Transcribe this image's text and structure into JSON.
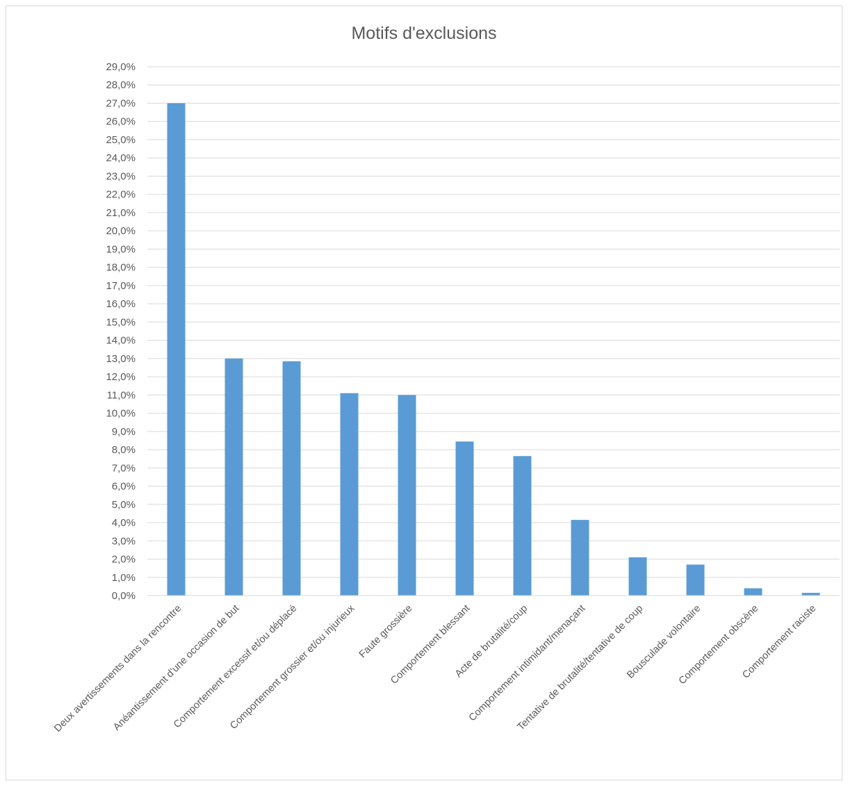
{
  "chart_data": {
    "type": "bar",
    "title": "Motifs d'exclusions",
    "xlabel": "",
    "ylabel": "",
    "ylim": [
      0,
      29
    ],
    "ytick_step": 1,
    "ytick_format": "percent-comma-1dp",
    "ytick_labels": [
      "0,0%",
      "1,0%",
      "2,0%",
      "3,0%",
      "4,0%",
      "5,0%",
      "6,0%",
      "7,0%",
      "8,0%",
      "9,0%",
      "10,0%",
      "11,0%",
      "12,0%",
      "13,0%",
      "14,0%",
      "15,0%",
      "16,0%",
      "17,0%",
      "18,0%",
      "19,0%",
      "20,0%",
      "21,0%",
      "22,0%",
      "23,0%",
      "24,0%",
      "25,0%",
      "26,0%",
      "27,0%",
      "28,0%",
      "29,0%"
    ],
    "grid": true,
    "legend": "none",
    "bar_color": "#5b9bd5",
    "grid_color": "#d9d9d9",
    "categories": [
      "Deux avertissements dans la rencontre",
      "Anéantissement d'une occasion de but",
      "Comportement excessif et/ou déplacé",
      "Comportement grossier et/ou injurieux",
      "Faute grossière",
      "Comportement blessant",
      "Acte de brutalité/coup",
      "Comportement intimidant/menaçant",
      "Tentative de brutalité/tentative de coup",
      "Bousculade volontaire",
      "Comportement obscène",
      "Comportement raciste"
    ],
    "values": [
      27.0,
      13.0,
      12.85,
      11.1,
      11.0,
      8.45,
      7.65,
      4.15,
      2.1,
      1.7,
      0.4,
      0.15
    ]
  }
}
